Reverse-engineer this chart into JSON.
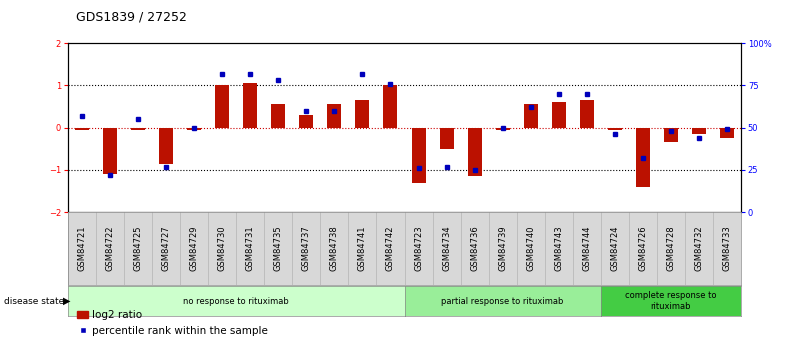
{
  "title": "GDS1839 / 27252",
  "samples": [
    "GSM84721",
    "GSM84722",
    "GSM84725",
    "GSM84727",
    "GSM84729",
    "GSM84730",
    "GSM84731",
    "GSM84735",
    "GSM84737",
    "GSM84738",
    "GSM84741",
    "GSM84742",
    "GSM84723",
    "GSM84734",
    "GSM84736",
    "GSM84739",
    "GSM84740",
    "GSM84743",
    "GSM84744",
    "GSM84724",
    "GSM84726",
    "GSM84728",
    "GSM84732",
    "GSM84733"
  ],
  "log2_ratio": [
    -0.05,
    -1.1,
    -0.05,
    -0.85,
    -0.05,
    1.0,
    1.05,
    0.55,
    0.3,
    0.55,
    0.65,
    1.0,
    -1.3,
    -0.5,
    -1.15,
    -0.05,
    0.55,
    0.6,
    0.65,
    -0.05,
    -1.4,
    -0.35,
    -0.15,
    -0.25
  ],
  "percentile_rank": [
    57,
    22,
    55,
    27,
    50,
    82,
    82,
    78,
    60,
    60,
    82,
    76,
    26,
    27,
    25,
    50,
    62,
    70,
    70,
    46,
    32,
    48,
    44,
    49
  ],
  "groups": [
    {
      "label": "no response to rituximab",
      "start": 0,
      "end": 12,
      "color": "#ccffcc"
    },
    {
      "label": "partial response to rituximab",
      "start": 12,
      "end": 19,
      "color": "#99ee99"
    },
    {
      "label": "complete response to\nrituximab",
      "start": 19,
      "end": 24,
      "color": "#44cc44"
    }
  ],
  "bar_color": "#bb1100",
  "dot_color": "#0000bb",
  "ylim": [
    -2,
    2
  ],
  "y2lim": [
    0,
    100
  ],
  "yticks": [
    -2,
    -1,
    0,
    1,
    2
  ],
  "y2ticks": [
    0,
    25,
    50,
    75,
    100
  ],
  "hline_color_zero": "#cc0000",
  "hline_color_pm1": "#000000",
  "background_color": "#ffffff",
  "title_fontsize": 9,
  "tick_fontsize": 6,
  "label_fontsize": 6,
  "legend_fontsize": 7.5
}
